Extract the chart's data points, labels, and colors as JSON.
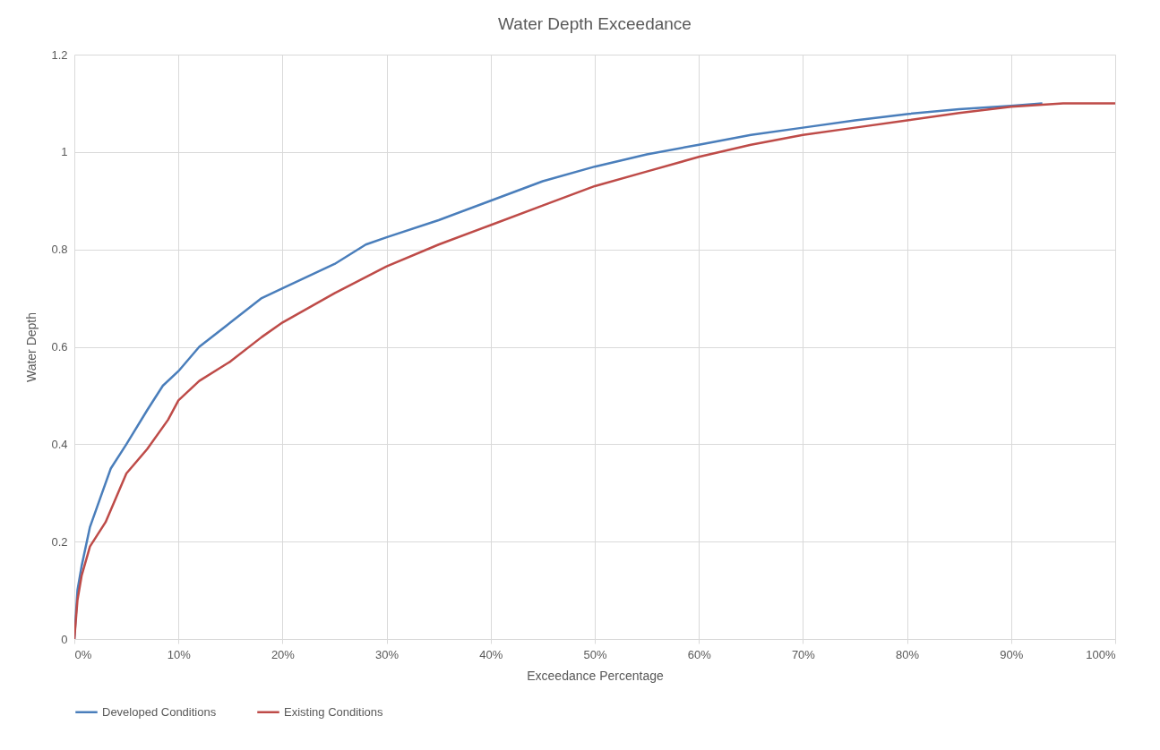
{
  "chart_data": {
    "type": "line",
    "title": "Water Depth Exceedance",
    "xlabel": "Exceedance Percentage",
    "ylabel": "Water Depth",
    "xlim": [
      0,
      100
    ],
    "xticks": [
      {
        "value": 0,
        "label": "0%"
      },
      {
        "value": 10,
        "label": "10%"
      },
      {
        "value": 20,
        "label": "20%"
      },
      {
        "value": 30,
        "label": "30%"
      },
      {
        "value": 40,
        "label": "40%"
      },
      {
        "value": 50,
        "label": "50%"
      },
      {
        "value": 60,
        "label": "60%"
      },
      {
        "value": 70,
        "label": "70%"
      },
      {
        "value": 80,
        "label": "80%"
      },
      {
        "value": 90,
        "label": "90%"
      },
      {
        "value": 100,
        "label": "100%"
      }
    ],
    "ylim": [
      0,
      1.2
    ],
    "yticks": [
      0,
      0.2,
      0.4,
      0.6,
      0.8,
      1,
      1.2
    ],
    "grid": true,
    "legend": "bottom",
    "marker": "none",
    "line_style": "solid",
    "series": [
      {
        "name": "Developed Conditions",
        "color": "#4a7ebb",
        "x": [
          0,
          0.3,
          0.7,
          1.5,
          2.5,
          3.5,
          5,
          7,
          8.5,
          10,
          12,
          15,
          18,
          20,
          25,
          28,
          30,
          35,
          40,
          45,
          50,
          55,
          60,
          65,
          70,
          75,
          80,
          85,
          90,
          93
        ],
        "values": [
          0,
          0.1,
          0.15,
          0.23,
          0.29,
          0.35,
          0.4,
          0.47,
          0.52,
          0.55,
          0.6,
          0.65,
          0.7,
          0.72,
          0.77,
          0.81,
          0.825,
          0.86,
          0.9,
          0.94,
          0.97,
          0.995,
          1.015,
          1.035,
          1.05,
          1.065,
          1.078,
          1.088,
          1.095,
          1.1
        ]
      },
      {
        "name": "Existing Conditions",
        "color": "#be4b48",
        "x": [
          0,
          0.3,
          0.7,
          1.5,
          3,
          4,
          5,
          7,
          9,
          10,
          12,
          15,
          18,
          20,
          25,
          30,
          35,
          40,
          45,
          50,
          55,
          60,
          65,
          70,
          75,
          80,
          85,
          90,
          95,
          100
        ],
        "values": [
          0,
          0.08,
          0.13,
          0.19,
          0.24,
          0.29,
          0.34,
          0.39,
          0.45,
          0.49,
          0.53,
          0.57,
          0.62,
          0.65,
          0.71,
          0.765,
          0.81,
          0.85,
          0.89,
          0.93,
          0.96,
          0.99,
          1.015,
          1.035,
          1.05,
          1.065,
          1.08,
          1.093,
          1.1,
          1.1
        ]
      }
    ]
  }
}
